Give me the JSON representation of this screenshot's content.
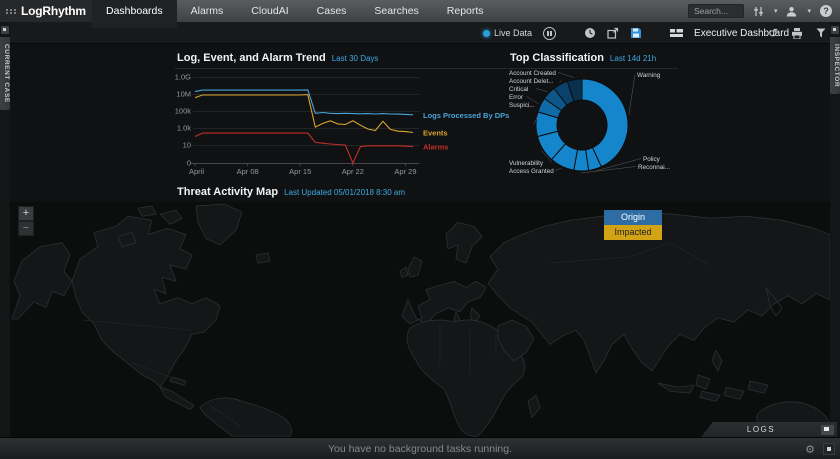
{
  "topbar": {
    "logo_text": "LogRhythm",
    "tabs": [
      {
        "label": "Dashboards",
        "active": true
      },
      {
        "label": "Alarms"
      },
      {
        "label": "CloudAI"
      },
      {
        "label": "Cases"
      },
      {
        "label": "Searches"
      },
      {
        "label": "Reports"
      }
    ],
    "search_placeholder": "Search...",
    "icons": {
      "caret": "▾",
      "help": "?"
    }
  },
  "toolbar": {
    "live_data_label": "Live Data",
    "dashboard_label": "Executive Dashboard",
    "icons": {
      "undo": "↺"
    }
  },
  "rails": {
    "left_label": "CURRENT CASE",
    "right_label": "INSPECTOR"
  },
  "panels": {
    "trend": {
      "title": "Log, Event, and Alarm Trend",
      "subtitle": "Last 30 Days"
    },
    "classification": {
      "title": "Top Classification",
      "subtitle": "Last 14d 21h"
    },
    "map": {
      "title": "Threat Activity Map",
      "subtitle": "Last Updated 05/01/2018 8:30 am",
      "zoom_in": "+",
      "zoom_out": "−",
      "legend": [
        {
          "label": "Origin",
          "color": "#2e6da4",
          "text_color": "#ffffff"
        },
        {
          "label": "Impacted",
          "color": "#d2a315",
          "text_color": "#1e1e1e"
        }
      ]
    }
  },
  "chart_data": [
    {
      "type": "line",
      "title": "Log, Event, and Alarm Trend",
      "x_days": [
        1,
        2,
        3,
        4,
        5,
        6,
        7,
        8,
        9,
        10,
        11,
        12,
        13,
        14,
        15,
        16,
        17,
        18,
        19,
        20,
        21,
        22,
        23,
        24,
        25,
        26,
        27,
        28,
        29,
        30
      ],
      "x_tick_days": [
        1,
        8,
        15,
        22,
        29
      ],
      "x_tick_labels": [
        "April",
        "Apr 08",
        "Apr 15",
        "Apr 22",
        "Apr 29"
      ],
      "y_scale": "symlog",
      "y_tick_values": [
        1000000000,
        10000000,
        100000,
        1000,
        10,
        0
      ],
      "y_tick_labels": [
        "1.0G",
        "10M",
        "100k",
        "1.0k",
        "10",
        "0"
      ],
      "legend_position": "right",
      "series": [
        {
          "name": "Logs Processed By DPs",
          "color": "#4aa3d9",
          "values": [
            20000000,
            30000000,
            30000000,
            30000000,
            30000000,
            30000000,
            30000000,
            30000000,
            30000000,
            30000000,
            30000000,
            30000000,
            30000000,
            30000000,
            30000000,
            32000000,
            60000,
            75000,
            60000,
            55000,
            60000,
            55000,
            52000,
            55000,
            50000,
            55000,
            50000,
            48000,
            45000,
            40000
          ]
        },
        {
          "name": "Events",
          "color": "#d9a62e",
          "values": [
            4000000,
            8000000,
            8000000,
            8000000,
            8000000,
            8000000,
            8000000,
            8000000,
            8000000,
            8000000,
            8000000,
            8000000,
            8000000,
            8000000,
            8000000,
            9000000,
            1500,
            4000,
            8000,
            3500,
            3000,
            8000,
            2500,
            900,
            600,
            7000,
            800,
            500,
            450,
            350
          ]
        },
        {
          "name": "Alarms",
          "color": "#c03028",
          "values": [
            120,
            300,
            300,
            300,
            300,
            300,
            300,
            300,
            300,
            300,
            300,
            300,
            300,
            300,
            300,
            300,
            25,
            20,
            16,
            14,
            12,
            0,
            8,
            10,
            10,
            10,
            10,
            10,
            9,
            8
          ]
        }
      ]
    },
    {
      "type": "pie",
      "title": "Top Classification",
      "donut": {
        "cx": 74,
        "cy": 56,
        "r_outer": 46,
        "r_inner": 25
      },
      "slices": [
        {
          "label": "Warning",
          "value": 150,
          "color": "#1586cb",
          "label_pos": [
            129,
            8
          ],
          "anchor": "start"
        },
        {
          "label": "Policy",
          "value": 16,
          "color": "#1586cb",
          "label_pos": [
            135,
            92
          ],
          "anchor": "start"
        },
        {
          "label": "Reconnai...",
          "value": 18,
          "color": "#1586cb",
          "label_pos": [
            130,
            100
          ],
          "anchor": "start"
        },
        {
          "label": "Access Granted",
          "value": 30,
          "color": "#1586cb",
          "label_pos": [
            1,
            104
          ],
          "anchor": "end-attach"
        },
        {
          "label": "Vulnerability",
          "value": 33,
          "color": "#1586cb",
          "label_pos": [
            1,
            96
          ],
          "anchor": "end-attach"
        },
        {
          "label": "Suspici...",
          "value": 30,
          "color": "#1283c8",
          "label_pos": [
            1,
            38
          ],
          "anchor": "end-attach"
        },
        {
          "label": "Error",
          "value": 18,
          "color": "#0f6aa6",
          "label_pos": [
            1,
            30
          ],
          "anchor": "end-attach"
        },
        {
          "label": "Critical",
          "value": 17,
          "color": "#0d568a",
          "label_pos": [
            1,
            22
          ],
          "anchor": "end-attach"
        },
        {
          "label": "Account Delet...",
          "value": 18,
          "color": "#0a426c",
          "label_pos": [
            1,
            14
          ],
          "anchor": "end-attach"
        },
        {
          "label": "Account Created",
          "value": 18,
          "color": "#083150",
          "label_pos": [
            1,
            6
          ],
          "anchor": "end-attach"
        }
      ]
    }
  ],
  "footer": {
    "logs_label": "LOGS",
    "status_message": "You have no background tasks running."
  }
}
